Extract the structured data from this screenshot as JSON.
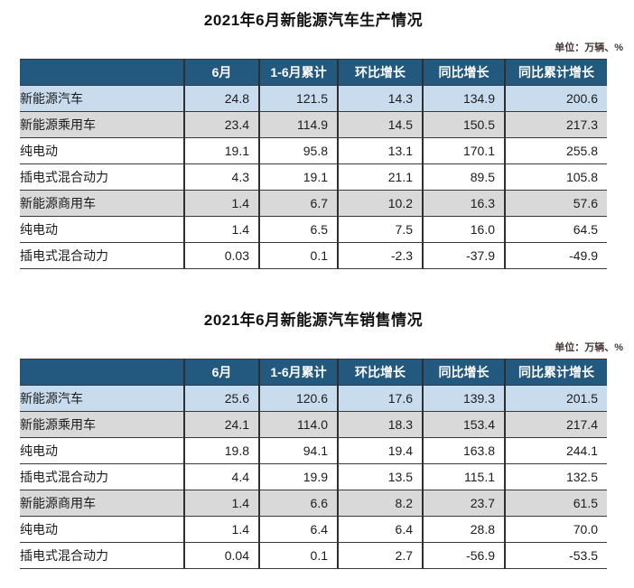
{
  "colors": {
    "header_bg": "#23587f",
    "header_text": "#ffffff",
    "row_blue": "#c9dcee",
    "row_gray": "#d9d9d9",
    "row_white": "#ffffff",
    "border_dark": "#3a3a3a",
    "text": "#1c1c1c",
    "unit_text": "#463636"
  },
  "chart_data": [
    {
      "type": "table",
      "title": "2021年6月新能源汽车生产情况",
      "unit_note": "单位：万辆、%",
      "columns": [
        "",
        "6月",
        "1-6月累计",
        "环比增长",
        "同比增长",
        "同比累计增长"
      ],
      "rows": [
        {
          "label": "新能源汽车",
          "indent": 0,
          "style": "blue",
          "values": [
            "24.8",
            "121.5",
            "14.3",
            "134.9",
            "200.6"
          ]
        },
        {
          "label": "新能源乘用车",
          "indent": 1,
          "style": "gray",
          "values": [
            "23.4",
            "114.9",
            "14.5",
            "150.5",
            "217.3"
          ]
        },
        {
          "label": "纯电动",
          "indent": 2,
          "style": "white",
          "values": [
            "19.1",
            "95.8",
            "13.1",
            "170.1",
            "255.8"
          ]
        },
        {
          "label": "插电式混合动力",
          "indent": 2,
          "style": "white",
          "values": [
            "4.3",
            "19.1",
            "21.1",
            "89.5",
            "105.8"
          ]
        },
        {
          "label": "新能源商用车",
          "indent": 1,
          "style": "gray",
          "values": [
            "1.4",
            "6.7",
            "10.2",
            "16.3",
            "57.6"
          ]
        },
        {
          "label": "纯电动",
          "indent": 2,
          "style": "white",
          "values": [
            "1.4",
            "6.5",
            "7.5",
            "16.0",
            "64.5"
          ]
        },
        {
          "label": "插电式混合动力",
          "indent": 2,
          "style": "white",
          "values": [
            "0.03",
            "0.1",
            "-2.3",
            "-37.9",
            "-49.9"
          ]
        }
      ]
    },
    {
      "type": "table",
      "title": "2021年6月新能源汽车销售情况",
      "unit_note": "单位：万辆、%",
      "columns": [
        "",
        "6月",
        "1-6月累计",
        "环比增长",
        "同比增长",
        "同比累计增长"
      ],
      "rows": [
        {
          "label": "新能源汽车",
          "indent": 0,
          "style": "blue",
          "values": [
            "25.6",
            "120.6",
            "17.6",
            "139.3",
            "201.5"
          ]
        },
        {
          "label": "新能源乘用车",
          "indent": 1,
          "style": "gray",
          "values": [
            "24.1",
            "114.0",
            "18.3",
            "153.4",
            "217.4"
          ]
        },
        {
          "label": "纯电动",
          "indent": 2,
          "style": "white",
          "values": [
            "19.8",
            "94.1",
            "19.4",
            "163.8",
            "244.1"
          ]
        },
        {
          "label": "插电式混合动力",
          "indent": 2,
          "style": "white",
          "values": [
            "4.4",
            "19.9",
            "13.5",
            "115.1",
            "132.5"
          ]
        },
        {
          "label": "新能源商用车",
          "indent": 1,
          "style": "gray",
          "values": [
            "1.4",
            "6.6",
            "8.2",
            "23.7",
            "61.5"
          ]
        },
        {
          "label": "纯电动",
          "indent": 2,
          "style": "white",
          "values": [
            "1.4",
            "6.4",
            "6.4",
            "28.8",
            "70.0"
          ]
        },
        {
          "label": "插电式混合动力",
          "indent": 2,
          "style": "white",
          "values": [
            "0.04",
            "0.1",
            "2.7",
            "-56.9",
            "-53.5"
          ]
        }
      ]
    }
  ]
}
